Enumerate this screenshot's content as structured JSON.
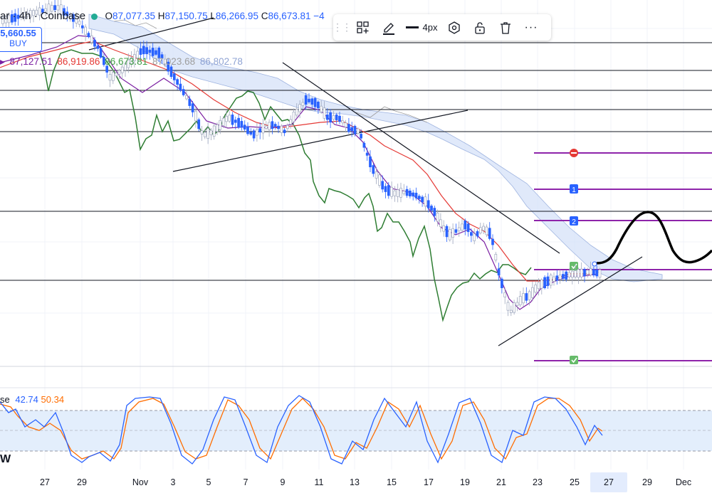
{
  "header": {
    "symbol_partial": "ar",
    "interval": "4h",
    "exchange": "Coinbase",
    "separator": "·",
    "o_label": "O",
    "o_value": "87,077.35",
    "h_label": "H",
    "h_value": "87,150.75",
    "l_label": "L",
    "l_value": "86,266.95",
    "c_label": "C",
    "c_value": "86,673.81",
    "change_partial": "−4"
  },
  "buy_widget": {
    "price": "5,660.55",
    "label": "BUY"
  },
  "ichimoku_values": [
    "87,127.51",
    "86,919.86",
    "86,673.81",
    "87,023.68",
    "86,802.78"
  ],
  "ichimoku_colors": [
    "#7b1fa2",
    "#e53935",
    "#43a047",
    "#9e9e9e",
    "#90a4d4"
  ],
  "toolbar": {
    "items": [
      "drag-grip",
      "add-to-layout",
      "pencil",
      "line-width",
      "settings",
      "lock",
      "delete",
      "more"
    ],
    "line_width_label": "4px",
    "more_label": "···"
  },
  "stoch": {
    "label_partial": "se",
    "k_value": "42.74",
    "d_value": "50.34",
    "k_color": "#2962ff",
    "d_color": "#ff6d00"
  },
  "bottom_label": "W",
  "x_axis_labels": [
    "27",
    "29",
    "Nov",
    "3",
    "5",
    "7",
    "9",
    "11",
    "13",
    "15",
    "17",
    "19",
    "21",
    "23",
    "25",
    "27",
    "29",
    "Dec"
  ],
  "x_axis_highlight": "27",
  "chart_data": {
    "type": "candlestick",
    "interval": "4h",
    "x_range": [
      "Oct 26",
      "Dec 1"
    ],
    "horizontal_levels_count": 8,
    "trade_markers": [
      {
        "label": "stop",
        "color": "#e53935"
      },
      {
        "label": "1",
        "color": "#2962ff"
      },
      {
        "label": "2",
        "color": "#2962ff"
      },
      {
        "label": "entry-check",
        "color": "#4caf50"
      },
      {
        "label": "target-check",
        "color": "#4caf50"
      }
    ],
    "stochastic": {
      "k": 42.74,
      "d": 50.34,
      "band": [
        20,
        80
      ]
    }
  }
}
